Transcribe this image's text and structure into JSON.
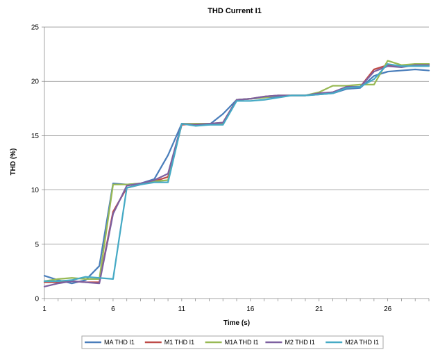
{
  "chart_data": {
    "type": "line",
    "title": "THD Current I1",
    "xlabel": "Time (s)",
    "ylabel": "THD (%)",
    "xlim": [
      1,
      29
    ],
    "ylim": [
      0,
      25
    ],
    "x_ticks": [
      1,
      6,
      11,
      16,
      21,
      26
    ],
    "y_ticks": [
      0,
      5,
      10,
      15,
      20,
      25
    ],
    "grid": "horizontal",
    "legend": "bottom",
    "x": [
      1,
      2,
      3,
      4,
      5,
      6,
      7,
      8,
      9,
      10,
      11,
      12,
      13,
      14,
      15,
      16,
      17,
      18,
      19,
      20,
      21,
      22,
      23,
      24,
      25,
      26,
      27,
      28,
      29
    ],
    "series": [
      {
        "name": "MA THD I1",
        "color": "#4a7ebb",
        "values": [
          2.1,
          1.7,
          1.4,
          1.7,
          3.0,
          10.6,
          10.5,
          10.6,
          11.0,
          13.2,
          16.1,
          16.0,
          16.0,
          17.0,
          18.3,
          18.4,
          18.5,
          18.6,
          18.7,
          18.7,
          18.8,
          18.9,
          19.3,
          19.4,
          20.5,
          20.9,
          21.0,
          21.1,
          21.0
        ]
      },
      {
        "name": "M1 THD I1",
        "color": "#be4b48",
        "values": [
          1.5,
          1.5,
          1.6,
          1.5,
          1.5,
          8.0,
          10.2,
          10.5,
          10.8,
          11.2,
          16.0,
          16.1,
          16.1,
          16.2,
          18.3,
          18.4,
          18.6,
          18.7,
          18.7,
          18.7,
          18.9,
          19.0,
          19.4,
          19.5,
          21.1,
          21.5,
          21.4,
          21.6,
          21.6
        ]
      },
      {
        "name": "M1A THD I1",
        "color": "#98b954",
        "values": [
          1.6,
          1.8,
          1.9,
          1.8,
          1.8,
          10.5,
          10.5,
          10.6,
          10.8,
          10.9,
          16.1,
          16.1,
          16.1,
          16.1,
          18.3,
          18.4,
          18.5,
          18.7,
          18.7,
          18.7,
          19.0,
          19.6,
          19.6,
          19.7,
          19.7,
          21.9,
          21.5,
          21.6,
          21.6
        ]
      },
      {
        "name": "M2 THD I1",
        "color": "#7d60a0",
        "values": [
          1.1,
          1.4,
          1.6,
          1.5,
          1.4,
          7.8,
          10.4,
          10.6,
          10.9,
          11.5,
          16.1,
          16.0,
          16.1,
          16.2,
          18.3,
          18.4,
          18.6,
          18.7,
          18.7,
          18.7,
          18.9,
          19.0,
          19.5,
          19.5,
          20.9,
          21.4,
          21.3,
          21.5,
          21.5
        ]
      },
      {
        "name": "M2A THD I1",
        "color": "#46aac5",
        "values": [
          1.6,
          1.6,
          1.7,
          2.0,
          1.9,
          1.8,
          10.2,
          10.5,
          10.7,
          10.7,
          16.1,
          15.9,
          16.0,
          16.0,
          18.2,
          18.2,
          18.3,
          18.5,
          18.7,
          18.7,
          18.8,
          18.9,
          19.4,
          19.5,
          20.2,
          21.6,
          21.4,
          21.4,
          21.4
        ]
      }
    ]
  }
}
